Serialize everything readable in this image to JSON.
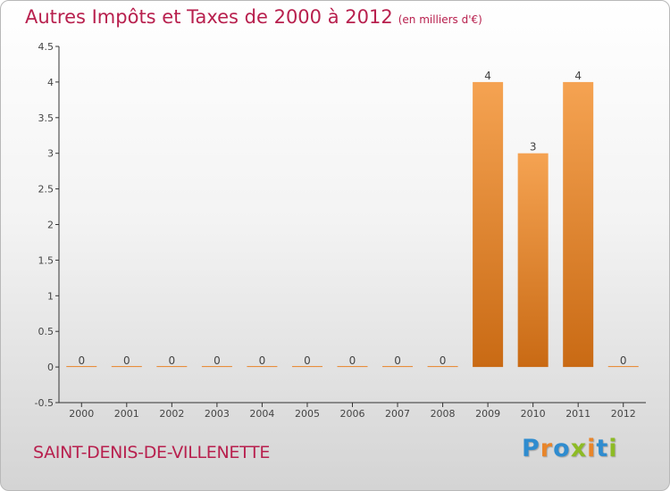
{
  "chart_data": {
    "type": "bar",
    "title": "Autres Impôts et Taxes de 2000 à 2012",
    "subtitle": "(en milliers d'€)",
    "categories": [
      "2000",
      "2001",
      "2002",
      "2003",
      "2004",
      "2005",
      "2006",
      "2007",
      "2008",
      "2009",
      "2010",
      "2011",
      "2012"
    ],
    "values": [
      0,
      0,
      0,
      0,
      0,
      0,
      0,
      0,
      0,
      4,
      3,
      4,
      0
    ],
    "data_labels": [
      "0",
      "0",
      "0",
      "0",
      "0",
      "0",
      "0",
      "0",
      "0",
      "4",
      "3",
      "4",
      "0"
    ],
    "ylim": [
      -0.5,
      4.5
    ],
    "yticks": [
      -0.5,
      0,
      0.5,
      1,
      1.5,
      2,
      2.5,
      3,
      3.5,
      4,
      4.5
    ],
    "ytick_labels": [
      "-0.5",
      "0",
      "0.5",
      "1",
      "1.5",
      "2",
      "2.5",
      "3",
      "3.5",
      "4",
      "4.5"
    ],
    "grid": false,
    "bar_color": "#e8852a",
    "xlabel": "",
    "ylabel": ""
  },
  "footer": {
    "commune": "SAINT-DENIS-DE-VILLENETTE",
    "logo_letters": [
      "P",
      "r",
      "o",
      "x",
      "i",
      "t",
      "i"
    ],
    "logo_colors": [
      "#2f8ccf",
      "#e8852a",
      "#2f8ccf",
      "#8dbb25",
      "#e8852a",
      "#2f8ccf",
      "#8dbb25"
    ]
  }
}
